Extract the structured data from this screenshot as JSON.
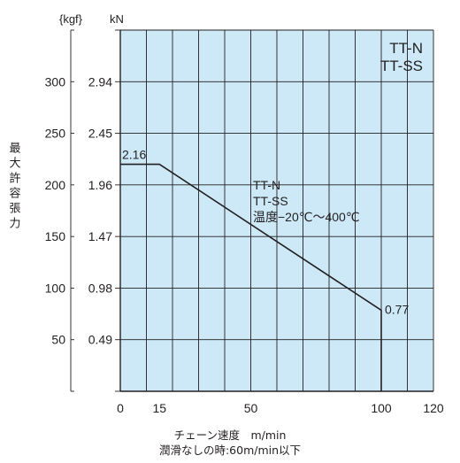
{
  "chart_data": {
    "type": "line",
    "title": "",
    "ylabel": "最大許容張力",
    "y_units": {
      "primary": "{kgf}",
      "secondary": "kN"
    },
    "xlabel": "チェーン速度　m/min",
    "note": "潤滑なしの時:60m/min以下",
    "xlim": [
      0,
      120
    ],
    "ylim_kgf": [
      0,
      350
    ],
    "x_ticks": [
      0,
      15,
      50,
      100,
      120
    ],
    "x_gridlines": [
      0,
      10,
      20,
      30,
      40,
      50,
      60,
      70,
      80,
      90,
      100,
      110,
      120
    ],
    "y_ticks": [
      {
        "kgf": "300",
        "kN": "2.94",
        "value": 300
      },
      {
        "kgf": "250",
        "kN": "2.45",
        "value": 250
      },
      {
        "kgf": "200",
        "kN": "1.96",
        "value": 200
      },
      {
        "kgf": "150",
        "kN": "1.47",
        "value": 150
      },
      {
        "kgf": "100",
        "kN": "0.98",
        "value": 100
      },
      {
        "kgf": "50",
        "kN": "0.49",
        "value": 50
      }
    ],
    "y_gridlines": [
      0,
      50,
      100,
      150,
      200,
      250,
      300,
      350
    ],
    "grid": true,
    "series": [
      {
        "points": [
          [
            0,
            220
          ],
          [
            15,
            220
          ],
          [
            100,
            78.5
          ],
          [
            100,
            0
          ]
        ],
        "data_labels": [
          {
            "text": "2.16",
            "x": 0,
            "y": 220
          },
          {
            "text": "0.77",
            "x": 100,
            "y": 78.5
          }
        ]
      }
    ],
    "legend_box": [
      "TT-N",
      "TT-SS"
    ],
    "annotation": [
      "TT-N",
      "TT-SS",
      "温度−20℃〜400℃"
    ],
    "colors": {
      "plot_bg": "#cde9f8",
      "grid": "#231f20",
      "line": "#231f20"
    }
  }
}
